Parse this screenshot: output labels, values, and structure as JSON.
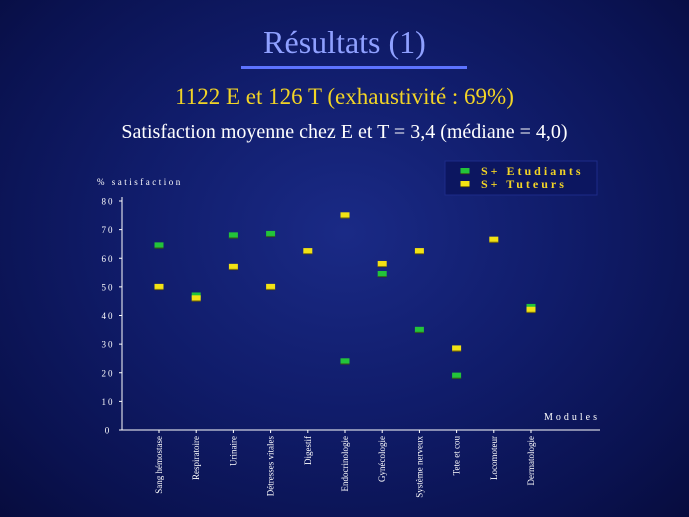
{
  "slide": {
    "title": "Résultats (1)",
    "subtitle": "1122 E et 126 T (exhaustivité : 69%)",
    "subtitle2": "Satisfaction moyenne chez E et T = 3,4 (médiane = 4,0)"
  },
  "colors": {
    "background": "#101c6a",
    "title": "#8fa0ff",
    "subtitle": "#f2d426",
    "axis": "#ffffff",
    "etudiants": "#23c43a",
    "tuteurs": "#f2e214"
  },
  "chart_data": {
    "type": "scatter",
    "ylabel": "% satisfaction",
    "xlabel": "Modules",
    "ylim": [
      0,
      80
    ],
    "yticks": [
      0,
      10,
      20,
      30,
      40,
      50,
      60,
      70,
      80
    ],
    "grid": false,
    "legend_position": "top-right",
    "categories": [
      "Sang hémostase",
      "Respiratoire",
      "Urinaire",
      "Détresses vitales",
      "Digestif",
      "Endocrinologie",
      "Gynécologie",
      "Système nerveux",
      "Tete et cou",
      "Locomoteur",
      "Dermatologie"
    ],
    "series": [
      {
        "name": "S+ Etudiants",
        "values": [
          64.5,
          47,
          68,
          68.5,
          null,
          24,
          54.5,
          35,
          19,
          null,
          43
        ]
      },
      {
        "name": "S+ Tuteurs",
        "values": [
          50,
          46,
          57,
          50,
          62.5,
          75,
          58,
          62.5,
          28.5,
          66.5,
          42
        ]
      }
    ]
  }
}
